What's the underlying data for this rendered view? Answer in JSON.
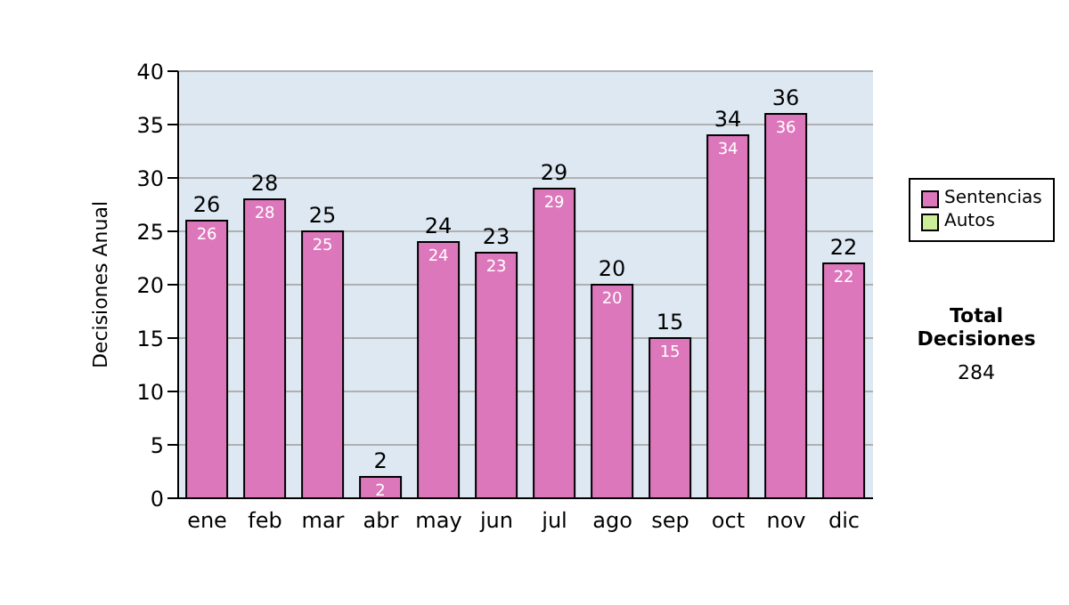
{
  "chart_data": {
    "type": "bar",
    "ylabel": "Decisiones Anual",
    "categories": [
      "ene",
      "feb",
      "mar",
      "abr",
      "may",
      "jun",
      "jul",
      "ago",
      "sep",
      "oct",
      "nov",
      "dic"
    ],
    "series": [
      {
        "name": "Sentencias",
        "color": "#dd77bb",
        "values": [
          26,
          28,
          25,
          2,
          24,
          23,
          29,
          20,
          15,
          34,
          36,
          22
        ]
      },
      {
        "name": "Autos",
        "color": "#ccee99",
        "values": [
          null,
          null,
          null,
          null,
          null,
          null,
          null,
          null,
          null,
          null,
          null,
          null
        ]
      }
    ],
    "stacked": true,
    "ylim": [
      0,
      40
    ],
    "yticks": [
      0,
      5,
      10,
      15,
      20,
      25,
      30,
      35,
      40
    ],
    "grid": "y",
    "legend": "right",
    "data_labels": true,
    "totals": [
      "26",
      "28",
      "25",
      "2",
      "24",
      "23",
      "29",
      "20",
      "15",
      "34",
      "36",
      "22"
    ],
    "annotations": [
      "Total Decisiones",
      "284"
    ]
  }
}
